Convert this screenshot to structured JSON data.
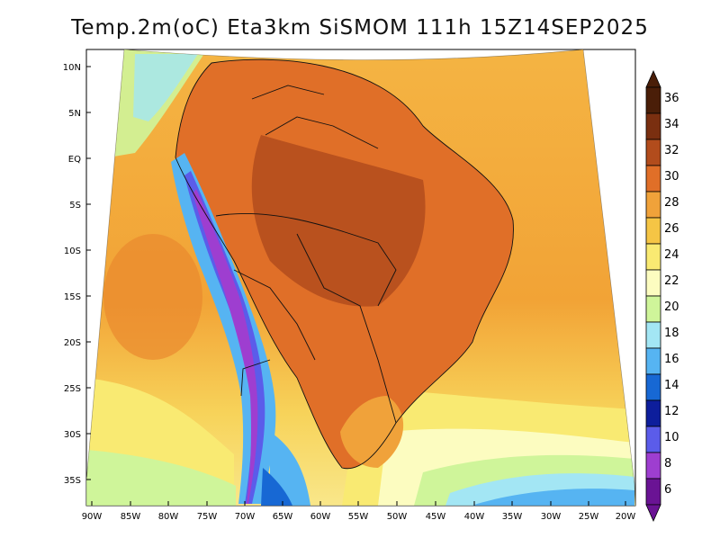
{
  "map": {
    "title": "Temp.2m(oC) Eta3km SiSMOM 111h 15Z14SEP2025",
    "latitude_labels": [
      "10N",
      "5N",
      "EQ",
      "5S",
      "10S",
      "15S",
      "20S",
      "25S",
      "30S",
      "35S"
    ],
    "longitude_labels": [
      "90W",
      "85W",
      "80W",
      "75W",
      "70W",
      "65W",
      "60W",
      "55W",
      "50W",
      "45W",
      "40W",
      "35W",
      "30W",
      "25W",
      "20W"
    ],
    "colorbar": {
      "labels": [
        "36",
        "34",
        "32",
        "30",
        "28",
        "26",
        "24",
        "22",
        "20",
        "18",
        "16",
        "14",
        "12",
        "10",
        "8",
        "6"
      ],
      "colors": [
        "#4a1e08",
        "#7a2f10",
        "#b24c1c",
        "#e06f28",
        "#f0a23a",
        "#f5c545",
        "#f9ea72",
        "#fcfcc0",
        "#cff59a",
        "#a3e6f4",
        "#56b4f2",
        "#1768d4",
        "#0d1e9c",
        "#5b5cea",
        "#9e3ed0",
        "#6a1394"
      ]
    }
  }
}
